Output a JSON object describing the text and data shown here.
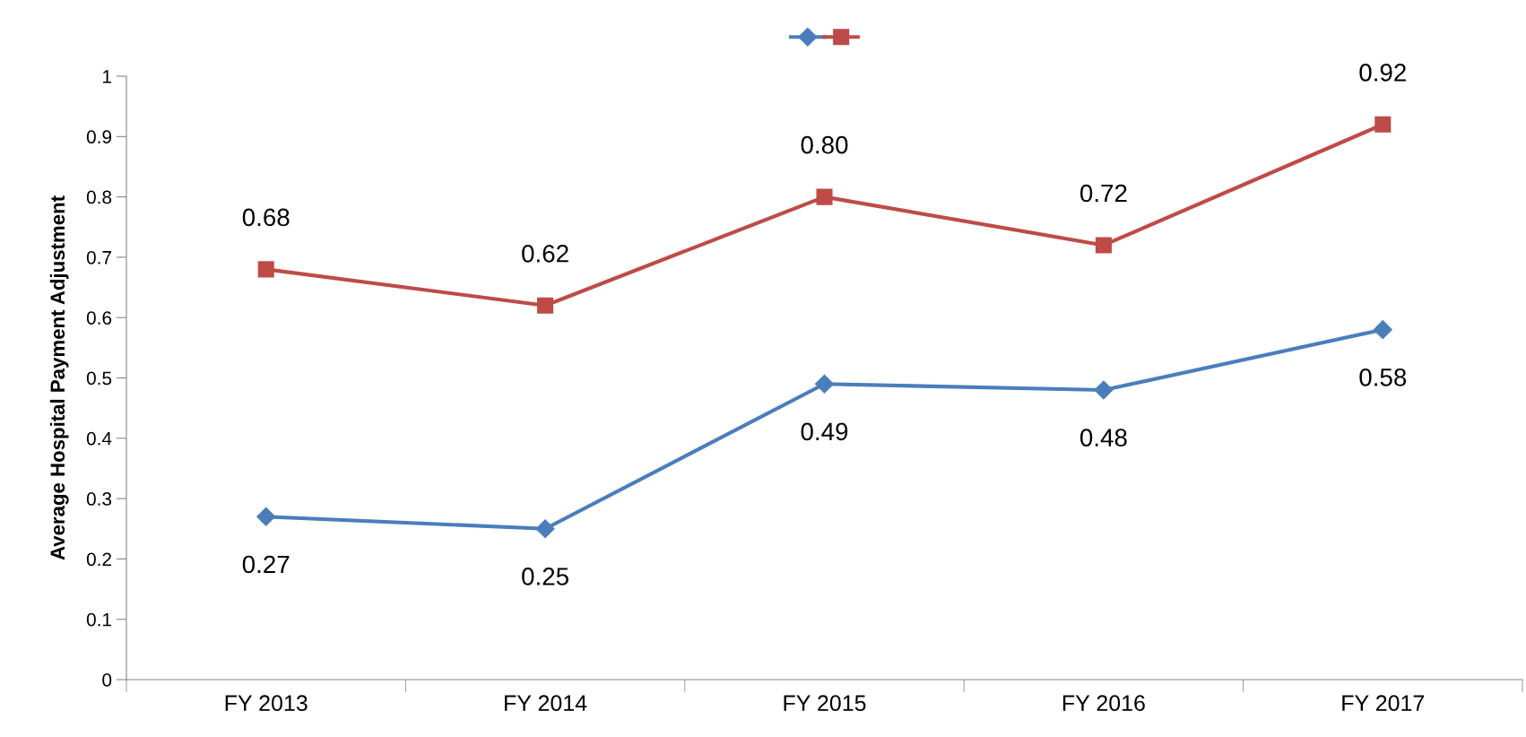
{
  "chart_data": {
    "type": "line",
    "ylabel": "Average Hospital Payment Adjustment",
    "categories": [
      "FY 2013",
      "FY 2014",
      "FY 2015",
      "FY 2016",
      "FY 2017"
    ],
    "series": [
      {
        "color": "#4a7ebb",
        "marker": "diamond",
        "values": [
          0.27,
          0.25,
          0.49,
          0.48,
          0.58
        ],
        "value_labels": [
          "0.27",
          "0.25",
          "0.49",
          "0.48",
          "0.58"
        ]
      },
      {
        "color": "#be4b48",
        "marker": "square",
        "values": [
          0.68,
          0.62,
          0.8,
          0.72,
          0.92
        ],
        "value_labels": [
          "0.68",
          "0.62",
          "0.80",
          "0.72",
          "0.92"
        ]
      }
    ],
    "ylim": [
      0,
      1
    ],
    "yticks": [
      0,
      0.1,
      0.2,
      0.3,
      0.4,
      0.5,
      0.6,
      0.7,
      0.8,
      0.9,
      1
    ],
    "grid": false,
    "line_style": "solid"
  }
}
